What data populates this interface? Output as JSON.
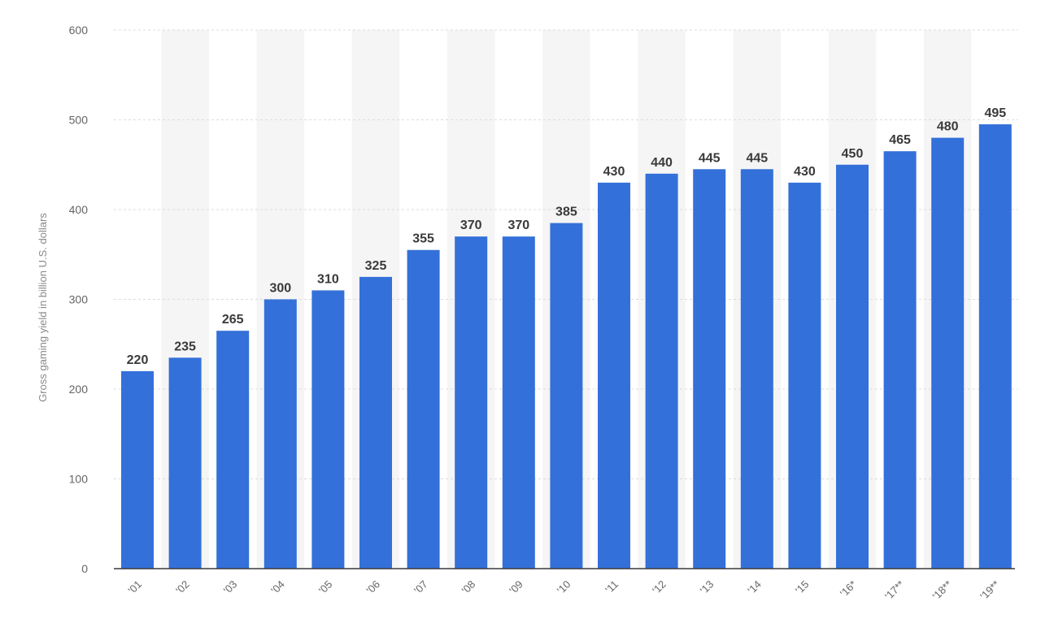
{
  "chart_data": {
    "type": "bar",
    "title": "",
    "xlabel": "",
    "ylabel": "Gross gaming yield in billion U.S. dollars",
    "categories": [
      "'01",
      "'02",
      "'03",
      "'04",
      "'05",
      "'06",
      "'07",
      "'08",
      "'09",
      "'10",
      "'11",
      "'12",
      "'13",
      "'14",
      "'15",
      "'16*",
      "'17**",
      "'18**",
      "'19**"
    ],
    "values": [
      220,
      235,
      265,
      300,
      310,
      325,
      355,
      370,
      370,
      385,
      430,
      440,
      445,
      445,
      430,
      450,
      465,
      480,
      495
    ],
    "ylim": [
      0,
      600
    ],
    "yticks": [
      0,
      100,
      200,
      300,
      400,
      500,
      600
    ],
    "grid": true,
    "legend": "none",
    "colors": {
      "bar": "#3470d9",
      "band": "#f5f5f5",
      "gridline": "#dcdcdc"
    }
  }
}
